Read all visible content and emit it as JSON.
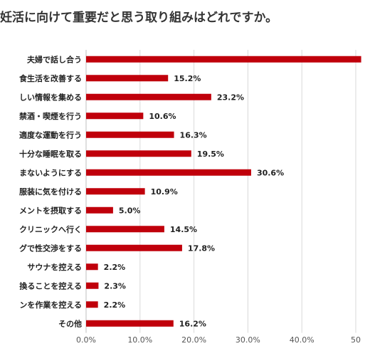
{
  "title": "妊活に向けて重要だと思う取り組みはどれですか。",
  "chart_data": {
    "type": "bar",
    "orientation": "horizontal",
    "title": "妊活に向けて重要だと思う取り組みはどれですか。",
    "categories": [
      "夫婦で話し合う",
      "食生活を改善する",
      "しい情報を集める",
      "禁酒・喫煙を行う",
      "適度な運動を行う",
      "十分な睡眠を取る",
      "まないようにする",
      "服装に気を付ける",
      "メントを摂取する",
      "クリニックへ行く",
      "グで性交渉をする",
      "サウナを控える",
      "換ることを控える",
      "ンを作業を控える",
      "その他"
    ],
    "values": [
      51.0,
      15.2,
      23.2,
      10.6,
      16.3,
      19.5,
      30.6,
      10.9,
      5.0,
      14.5,
      17.8,
      2.2,
      2.3,
      2.2,
      16.2
    ],
    "value_labels": [
      "",
      "15.2%",
      "23.2%",
      "10.6%",
      "16.3%",
      "19.5%",
      "30.6%",
      "10.9%",
      "5.0%",
      "14.5%",
      "17.8%",
      "2.2%",
      "2.3%",
      "2.2%",
      "16.2%"
    ],
    "xlim": [
      0,
      50
    ],
    "xticks": [
      0,
      10,
      20,
      30,
      40,
      50
    ],
    "xtick_labels": [
      "0.0%",
      "10.0%",
      "20.0%",
      "30.0%",
      "40.0%",
      "50"
    ],
    "grid": true,
    "bar_color": "#c0000b",
    "xlabel": "",
    "ylabel": ""
  }
}
